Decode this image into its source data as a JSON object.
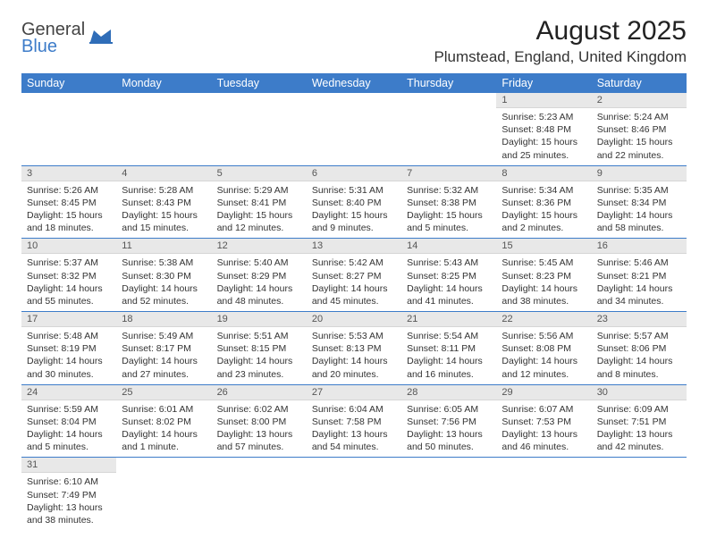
{
  "logo": {
    "general": "General",
    "blue": "Blue"
  },
  "title": "August 2025",
  "location": "Plumstead, England, United Kingdom",
  "colors": {
    "header_bg": "#3d7cc9",
    "header_text": "#ffffff",
    "daynum_bg": "#e8e8e8",
    "row_divider": "#3d7cc9",
    "body_text": "#333333"
  },
  "day_headers": [
    "Sunday",
    "Monday",
    "Tuesday",
    "Wednesday",
    "Thursday",
    "Friday",
    "Saturday"
  ],
  "weeks": [
    [
      null,
      null,
      null,
      null,
      null,
      {
        "n": "1",
        "sunrise": "Sunrise: 5:23 AM",
        "sunset": "Sunset: 8:48 PM",
        "daylight": "Daylight: 15 hours and 25 minutes."
      },
      {
        "n": "2",
        "sunrise": "Sunrise: 5:24 AM",
        "sunset": "Sunset: 8:46 PM",
        "daylight": "Daylight: 15 hours and 22 minutes."
      }
    ],
    [
      {
        "n": "3",
        "sunrise": "Sunrise: 5:26 AM",
        "sunset": "Sunset: 8:45 PM",
        "daylight": "Daylight: 15 hours and 18 minutes."
      },
      {
        "n": "4",
        "sunrise": "Sunrise: 5:28 AM",
        "sunset": "Sunset: 8:43 PM",
        "daylight": "Daylight: 15 hours and 15 minutes."
      },
      {
        "n": "5",
        "sunrise": "Sunrise: 5:29 AM",
        "sunset": "Sunset: 8:41 PM",
        "daylight": "Daylight: 15 hours and 12 minutes."
      },
      {
        "n": "6",
        "sunrise": "Sunrise: 5:31 AM",
        "sunset": "Sunset: 8:40 PM",
        "daylight": "Daylight: 15 hours and 9 minutes."
      },
      {
        "n": "7",
        "sunrise": "Sunrise: 5:32 AM",
        "sunset": "Sunset: 8:38 PM",
        "daylight": "Daylight: 15 hours and 5 minutes."
      },
      {
        "n": "8",
        "sunrise": "Sunrise: 5:34 AM",
        "sunset": "Sunset: 8:36 PM",
        "daylight": "Daylight: 15 hours and 2 minutes."
      },
      {
        "n": "9",
        "sunrise": "Sunrise: 5:35 AM",
        "sunset": "Sunset: 8:34 PM",
        "daylight": "Daylight: 14 hours and 58 minutes."
      }
    ],
    [
      {
        "n": "10",
        "sunrise": "Sunrise: 5:37 AM",
        "sunset": "Sunset: 8:32 PM",
        "daylight": "Daylight: 14 hours and 55 minutes."
      },
      {
        "n": "11",
        "sunrise": "Sunrise: 5:38 AM",
        "sunset": "Sunset: 8:30 PM",
        "daylight": "Daylight: 14 hours and 52 minutes."
      },
      {
        "n": "12",
        "sunrise": "Sunrise: 5:40 AM",
        "sunset": "Sunset: 8:29 PM",
        "daylight": "Daylight: 14 hours and 48 minutes."
      },
      {
        "n": "13",
        "sunrise": "Sunrise: 5:42 AM",
        "sunset": "Sunset: 8:27 PM",
        "daylight": "Daylight: 14 hours and 45 minutes."
      },
      {
        "n": "14",
        "sunrise": "Sunrise: 5:43 AM",
        "sunset": "Sunset: 8:25 PM",
        "daylight": "Daylight: 14 hours and 41 minutes."
      },
      {
        "n": "15",
        "sunrise": "Sunrise: 5:45 AM",
        "sunset": "Sunset: 8:23 PM",
        "daylight": "Daylight: 14 hours and 38 minutes."
      },
      {
        "n": "16",
        "sunrise": "Sunrise: 5:46 AM",
        "sunset": "Sunset: 8:21 PM",
        "daylight": "Daylight: 14 hours and 34 minutes."
      }
    ],
    [
      {
        "n": "17",
        "sunrise": "Sunrise: 5:48 AM",
        "sunset": "Sunset: 8:19 PM",
        "daylight": "Daylight: 14 hours and 30 minutes."
      },
      {
        "n": "18",
        "sunrise": "Sunrise: 5:49 AM",
        "sunset": "Sunset: 8:17 PM",
        "daylight": "Daylight: 14 hours and 27 minutes."
      },
      {
        "n": "19",
        "sunrise": "Sunrise: 5:51 AM",
        "sunset": "Sunset: 8:15 PM",
        "daylight": "Daylight: 14 hours and 23 minutes."
      },
      {
        "n": "20",
        "sunrise": "Sunrise: 5:53 AM",
        "sunset": "Sunset: 8:13 PM",
        "daylight": "Daylight: 14 hours and 20 minutes."
      },
      {
        "n": "21",
        "sunrise": "Sunrise: 5:54 AM",
        "sunset": "Sunset: 8:11 PM",
        "daylight": "Daylight: 14 hours and 16 minutes."
      },
      {
        "n": "22",
        "sunrise": "Sunrise: 5:56 AM",
        "sunset": "Sunset: 8:08 PM",
        "daylight": "Daylight: 14 hours and 12 minutes."
      },
      {
        "n": "23",
        "sunrise": "Sunrise: 5:57 AM",
        "sunset": "Sunset: 8:06 PM",
        "daylight": "Daylight: 14 hours and 8 minutes."
      }
    ],
    [
      {
        "n": "24",
        "sunrise": "Sunrise: 5:59 AM",
        "sunset": "Sunset: 8:04 PM",
        "daylight": "Daylight: 14 hours and 5 minutes."
      },
      {
        "n": "25",
        "sunrise": "Sunrise: 6:01 AM",
        "sunset": "Sunset: 8:02 PM",
        "daylight": "Daylight: 14 hours and 1 minute."
      },
      {
        "n": "26",
        "sunrise": "Sunrise: 6:02 AM",
        "sunset": "Sunset: 8:00 PM",
        "daylight": "Daylight: 13 hours and 57 minutes."
      },
      {
        "n": "27",
        "sunrise": "Sunrise: 6:04 AM",
        "sunset": "Sunset: 7:58 PM",
        "daylight": "Daylight: 13 hours and 54 minutes."
      },
      {
        "n": "28",
        "sunrise": "Sunrise: 6:05 AM",
        "sunset": "Sunset: 7:56 PM",
        "daylight": "Daylight: 13 hours and 50 minutes."
      },
      {
        "n": "29",
        "sunrise": "Sunrise: 6:07 AM",
        "sunset": "Sunset: 7:53 PM",
        "daylight": "Daylight: 13 hours and 46 minutes."
      },
      {
        "n": "30",
        "sunrise": "Sunrise: 6:09 AM",
        "sunset": "Sunset: 7:51 PM",
        "daylight": "Daylight: 13 hours and 42 minutes."
      }
    ],
    [
      {
        "n": "31",
        "sunrise": "Sunrise: 6:10 AM",
        "sunset": "Sunset: 7:49 PM",
        "daylight": "Daylight: 13 hours and 38 minutes."
      },
      null,
      null,
      null,
      null,
      null,
      null
    ]
  ]
}
